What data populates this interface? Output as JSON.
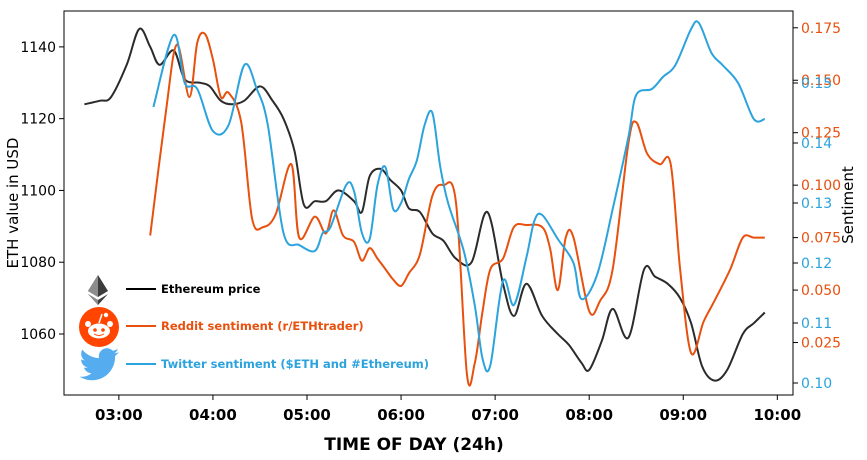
{
  "chart_data": {
    "type": "line",
    "xlabel": "TIME OF DAY (24h)",
    "ylabel_left": "ETH value in USD",
    "ylabel_right": "Sentiment",
    "x_ticks": [
      "03:00",
      "04:00",
      "05:00",
      "06:00",
      "07:00",
      "08:00",
      "09:00",
      "10:00"
    ],
    "xlim": [
      "02:25",
      "10:10"
    ],
    "left_axis": {
      "ylim": [
        1043,
        1150
      ],
      "ticks": [
        1060,
        1080,
        1100,
        1120,
        1140
      ],
      "tick_color": "#000000"
    },
    "right_axis_reddit": {
      "ylim": [
        0.0,
        0.183
      ],
      "ticks": [
        "0.025",
        "0.050",
        "0.075",
        "0.100",
        "0.125",
        "0.150",
        "0.175"
      ],
      "tick_values": [
        0.025,
        0.05,
        0.075,
        0.1,
        0.125,
        0.15,
        0.175
      ],
      "tick_color": "#e8500e"
    },
    "right_axis_twitter": {
      "ylim": [
        0.098,
        0.162
      ],
      "ticks": [
        "0.10",
        "0.11",
        "0.12",
        "0.13",
        "0.14",
        "0.15"
      ],
      "tick_values": [
        0.1,
        0.11,
        0.12,
        0.13,
        0.14,
        0.15
      ],
      "tick_color": "#2ca3dd"
    },
    "series": [
      {
        "name": "Ethereum price",
        "axis": "left",
        "color": "#2b2b2b",
        "icon": "ethereum-logo",
        "x": [
          "02:38",
          "02:48",
          "02:55",
          "03:05",
          "03:13",
          "03:20",
          "03:26",
          "03:35",
          "03:42",
          "03:52",
          "03:58",
          "04:05",
          "04:12",
          "04:20",
          "04:30",
          "04:38",
          "04:45",
          "04:52",
          "04:58",
          "05:05",
          "05:12",
          "05:20",
          "05:30",
          "05:35",
          "05:40",
          "05:47",
          "05:53",
          "06:00",
          "06:05",
          "06:12",
          "06:20",
          "06:27",
          "06:35",
          "06:45",
          "06:55",
          "07:05",
          "07:12",
          "07:20",
          "07:30",
          "07:40",
          "07:47",
          "07:55",
          "08:00",
          "08:08",
          "08:15",
          "08:25",
          "08:35",
          "08:42",
          "08:50",
          "08:58",
          "09:05",
          "09:12",
          "09:20",
          "09:28",
          "09:38",
          "09:45",
          "09:52"
        ],
        "values": [
          1124,
          1125,
          1126,
          1135,
          1145,
          1140,
          1135,
          1139,
          1131,
          1130,
          1129,
          1125,
          1124,
          1125,
          1129,
          1125,
          1120,
          1111,
          1096,
          1097,
          1097,
          1100,
          1097,
          1094,
          1104,
          1106,
          1103,
          1100,
          1095,
          1094,
          1088,
          1086,
          1081,
          1080,
          1094,
          1074,
          1065,
          1074,
          1065,
          1060,
          1057,
          1052,
          1050,
          1058,
          1067,
          1059,
          1078,
          1076,
          1074,
          1070,
          1063,
          1051,
          1047,
          1050,
          1060,
          1063,
          1066
        ]
      },
      {
        "name": "Reddit sentiment (r/ETHtrader)",
        "axis": "right_reddit",
        "color": "#e8500e",
        "icon": "reddit-logo",
        "x": [
          "03:20",
          "03:30",
          "03:37",
          "03:45",
          "03:50",
          "03:55",
          "04:00",
          "04:05",
          "04:10",
          "04:18",
          "04:25",
          "04:32",
          "04:40",
          "04:50",
          "04:55",
          "05:05",
          "05:12",
          "05:17",
          "05:23",
          "05:30",
          "05:35",
          "05:40",
          "05:45",
          "05:50",
          "05:55",
          "06:00",
          "06:05",
          "06:12",
          "06:20",
          "06:27",
          "06:35",
          "06:42",
          "06:47",
          "06:52",
          "06:57",
          "07:05",
          "07:12",
          "07:20",
          "07:30",
          "07:35",
          "07:40",
          "07:45",
          "07:50",
          "08:00",
          "08:07",
          "08:15",
          "08:25",
          "08:30",
          "08:37",
          "08:45",
          "08:52",
          "08:58",
          "09:05",
          "09:13",
          "09:20",
          "09:30",
          "09:38",
          "09:45",
          "09:52"
        ],
        "values": [
          0.076,
          0.135,
          0.167,
          0.142,
          0.168,
          0.172,
          0.16,
          0.142,
          0.144,
          0.13,
          0.084,
          0.08,
          0.086,
          0.11,
          0.075,
          0.085,
          0.077,
          0.088,
          0.076,
          0.073,
          0.064,
          0.07,
          0.065,
          0.06,
          0.055,
          0.052,
          0.058,
          0.067,
          0.095,
          0.1,
          0.092,
          0.01,
          0.015,
          0.04,
          0.06,
          0.065,
          0.08,
          0.081,
          0.08,
          0.07,
          0.05,
          0.075,
          0.075,
          0.04,
          0.045,
          0.06,
          0.12,
          0.13,
          0.115,
          0.11,
          0.11,
          0.06,
          0.02,
          0.035,
          0.045,
          0.06,
          0.075,
          0.075,
          0.075
        ]
      },
      {
        "name": "Twitter sentiment ($ETH and #Ethereum)",
        "axis": "right_twitter",
        "color": "#2ca3dd",
        "icon": "twitter-logo",
        "x": [
          "03:22",
          "03:35",
          "03:42",
          "03:50",
          "04:00",
          "04:10",
          "04:20",
          "04:28",
          "04:35",
          "04:45",
          "04:55",
          "05:05",
          "05:10",
          "05:15",
          "05:25",
          "05:30",
          "05:35",
          "05:40",
          "05:45",
          "05:50",
          "05:55",
          "06:00",
          "06:05",
          "06:10",
          "06:15",
          "06:20",
          "06:25",
          "06:30",
          "06:40",
          "06:47",
          "06:52",
          "06:57",
          "07:05",
          "07:12",
          "07:20",
          "07:25",
          "07:30",
          "07:40",
          "07:50",
          "07:55",
          "08:05",
          "08:15",
          "08:25",
          "08:30",
          "08:40",
          "08:47",
          "08:55",
          "09:05",
          "09:10",
          "09:18",
          "09:25",
          "09:35",
          "09:45",
          "09:52"
        ],
        "values": [
          0.146,
          0.158,
          0.15,
          0.149,
          0.142,
          0.143,
          0.153,
          0.149,
          0.143,
          0.125,
          0.123,
          0.122,
          0.125,
          0.126,
          0.133,
          0.132,
          0.125,
          0.124,
          0.133,
          0.136,
          0.129,
          0.13,
          0.134,
          0.137,
          0.143,
          0.145,
          0.136,
          0.13,
          0.122,
          0.113,
          0.104,
          0.103,
          0.117,
          0.113,
          0.121,
          0.127,
          0.128,
          0.124,
          0.12,
          0.114,
          0.118,
          0.129,
          0.141,
          0.148,
          0.149,
          0.151,
          0.153,
          0.159,
          0.16,
          0.155,
          0.153,
          0.15,
          0.144,
          0.144
        ]
      }
    ],
    "legend": {
      "placement": "lower-left",
      "entries": [
        "Ethereum price",
        "Reddit sentiment (r/ETHtrader)",
        "Twitter sentiment ($ETH and #Ethereum)"
      ]
    }
  }
}
